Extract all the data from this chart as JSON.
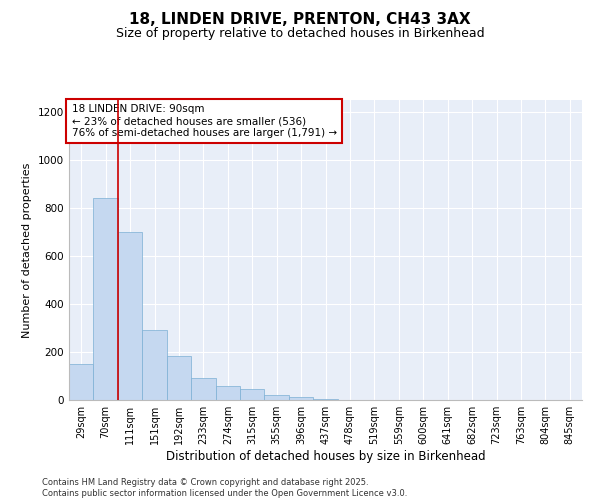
{
  "title1": "18, LINDEN DRIVE, PRENTON, CH43 3AX",
  "title2": "Size of property relative to detached houses in Birkenhead",
  "xlabel": "Distribution of detached houses by size in Birkenhead",
  "ylabel": "Number of detached properties",
  "categories": [
    "29sqm",
    "70sqm",
    "111sqm",
    "151sqm",
    "192sqm",
    "233sqm",
    "274sqm",
    "315sqm",
    "355sqm",
    "396sqm",
    "437sqm",
    "478sqm",
    "519sqm",
    "559sqm",
    "600sqm",
    "641sqm",
    "682sqm",
    "723sqm",
    "763sqm",
    "804sqm",
    "845sqm"
  ],
  "values": [
    150,
    840,
    700,
    290,
    185,
    90,
    57,
    45,
    22,
    13,
    5,
    1,
    1,
    0,
    0,
    2,
    0,
    0,
    0,
    0,
    0
  ],
  "bar_color": "#c5d8f0",
  "bar_edge_color": "#7bafd4",
  "bar_edge_width": 0.5,
  "vline_x": 1.5,
  "vline_color": "#cc0000",
  "annotation_text": "18 LINDEN DRIVE: 90sqm\n← 23% of detached houses are smaller (536)\n76% of semi-detached houses are larger (1,791) →",
  "annotation_box_color": "#ffffff",
  "annotation_box_edge": "#cc0000",
  "ylim": [
    0,
    1250
  ],
  "yticks": [
    0,
    200,
    400,
    600,
    800,
    1000,
    1200
  ],
  "background_color": "#e8eef8",
  "grid_color": "#ffffff",
  "footer_text": "Contains HM Land Registry data © Crown copyright and database right 2025.\nContains public sector information licensed under the Open Government Licence v3.0.",
  "title1_fontsize": 11,
  "title2_fontsize": 9,
  "xlabel_fontsize": 8.5,
  "ylabel_fontsize": 8,
  "tick_fontsize": 7,
  "annotation_fontsize": 7.5,
  "footer_fontsize": 6
}
